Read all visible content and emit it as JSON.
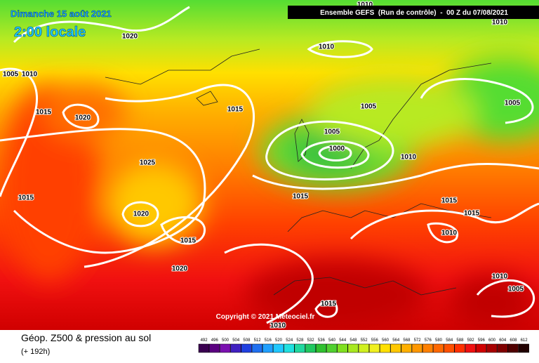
{
  "header": {
    "date": "Dimanche 15 août 2021",
    "time": "2:00 locale",
    "run": "Ensemble GEFS  (Run de contrôle)  -  00 Z du 07/08/2021"
  },
  "map": {
    "isobar_labels": [
      "1020",
      "1010",
      "1005",
      "1010",
      "1020",
      "1015",
      "1015",
      "1005",
      "1005",
      "1000",
      "1010",
      "1025",
      "1015",
      "1015",
      "1015",
      "1015",
      "1020",
      "1015",
      "1010",
      "1020",
      "1010",
      "1005",
      "1015",
      "1010",
      "1005",
      "1010",
      "1010"
    ],
    "copyright": "Copyright © 2021 Meteociel.fr"
  },
  "footer": {
    "title": "Géop. Z500 & pression au sol",
    "lead": "(+ 192h)"
  },
  "legend": {
    "values": [
      492,
      496,
      500,
      504,
      508,
      512,
      516,
      520,
      524,
      528,
      532,
      536,
      540,
      544,
      548,
      552,
      556,
      560,
      564,
      568,
      572,
      576,
      580,
      584,
      588,
      592,
      596,
      600,
      604,
      608,
      612
    ],
    "colors": [
      "#3a0050",
      "#5a0080",
      "#7a10b0",
      "#4020c0",
      "#2040e0",
      "#2070f0",
      "#20a0ff",
      "#20c8ff",
      "#20e0e0",
      "#20d8a0",
      "#20c860",
      "#30c030",
      "#50d030",
      "#80e020",
      "#a8e820",
      "#d0f020",
      "#f0f020",
      "#ffe000",
      "#ffc800",
      "#ffb000",
      "#ff9800",
      "#ff8000",
      "#ff6800",
      "#ff5000",
      "#ff3000",
      "#f01010",
      "#d00000",
      "#a80000",
      "#800000",
      "#500000",
      "#200000"
    ]
  }
}
